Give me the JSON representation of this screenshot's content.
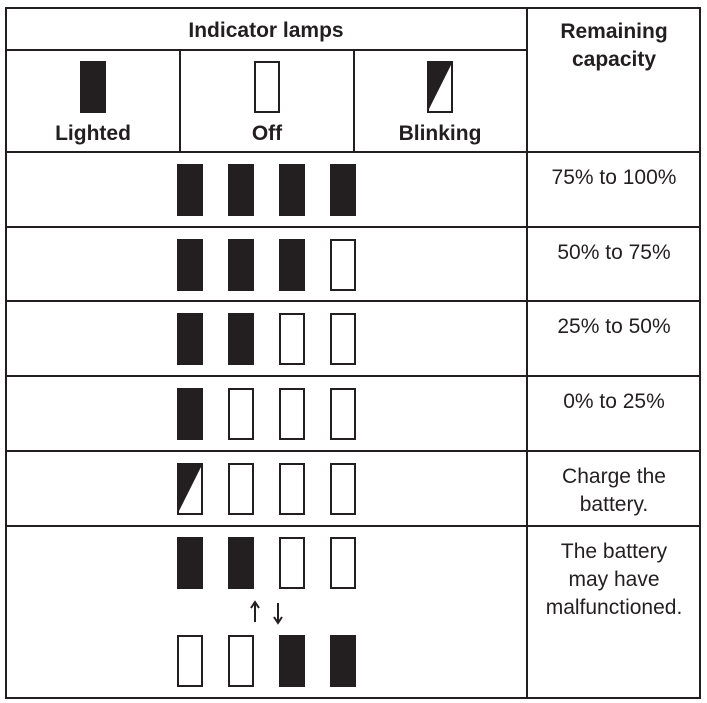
{
  "header": {
    "indicator": "Indicator lamps",
    "capacity": [
      "Remaining",
      "capacity"
    ]
  },
  "legend": {
    "lighted": "Lighted",
    "off": "Off",
    "blinking": "Blinking"
  },
  "rows": [
    {
      "capacity": [
        "75% to 100%"
      ]
    },
    {
      "capacity": [
        "50% to 75%"
      ]
    },
    {
      "capacity": [
        "25% to 50%"
      ]
    },
    {
      "capacity": [
        "0% to 25%"
      ]
    },
    {
      "capacity": [
        "Charge the",
        "battery."
      ]
    },
    {
      "capacity": [
        "The battery",
        "may have",
        "malfunctioned."
      ]
    }
  ]
}
